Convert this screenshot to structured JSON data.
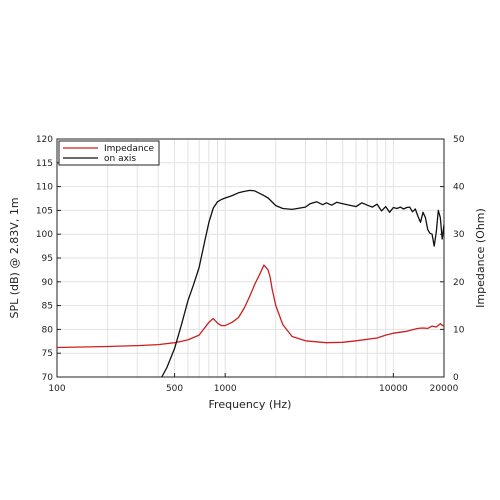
{
  "chart_data": {
    "type": "line",
    "xlabel": "Frequency (Hz)",
    "ylabel": "SPL (dB) @ 2.83V, 1m",
    "y2label": "Impedance (Ohm)",
    "x_scale": "log",
    "xlim": [
      100,
      20000
    ],
    "ylim": [
      70,
      120
    ],
    "y2lim": [
      0,
      50
    ],
    "x_ticks": [
      "100",
      "500",
      "1000",
      "10000",
      "20000"
    ],
    "x_tick_values": [
      100,
      500,
      1000,
      10000,
      20000
    ],
    "y_ticks": [
      "70",
      "75",
      "80",
      "85",
      "90",
      "95",
      "100",
      "105",
      "110",
      "115",
      "120"
    ],
    "y2_ticks": [
      "0",
      "10",
      "20",
      "30",
      "40",
      "50"
    ],
    "grid": true,
    "legend_position": "top-left",
    "series": [
      {
        "name": "Impedance",
        "color": "#cc1f1f",
        "axis": "right",
        "x": [
          100,
          200,
          300,
          400,
          500,
          600,
          700,
          800,
          850,
          900,
          950,
          1000,
          1100,
          1200,
          1300,
          1400,
          1500,
          1600,
          1700,
          1800,
          1850,
          1900,
          2000,
          2200,
          2500,
          3000,
          4000,
          5000,
          6000,
          8000,
          9000,
          10000,
          12000,
          14000,
          15000,
          16000,
          17000,
          18000,
          19000,
          20000
        ],
        "values": [
          6.2,
          6.4,
          6.6,
          6.8,
          7.2,
          7.8,
          8.8,
          11.5,
          12.3,
          11.3,
          10.8,
          10.8,
          11.5,
          12.5,
          14.5,
          17,
          19.5,
          21.5,
          23.5,
          22.5,
          21,
          18.5,
          15,
          11,
          8.5,
          7.6,
          7.2,
          7.3,
          7.6,
          8.2,
          8.8,
          9.2,
          9.6,
          10.2,
          10.3,
          10.2,
          10.7,
          10.5,
          11.2,
          10.6
        ]
      },
      {
        "name": "on axis",
        "color": "#111111",
        "axis": "left",
        "x": [
          420,
          450,
          500,
          550,
          600,
          650,
          700,
          750,
          800,
          850,
          900,
          950,
          1000,
          1100,
          1200,
          1300,
          1400,
          1500,
          1600,
          1700,
          1800,
          2000,
          2200,
          2500,
          3000,
          3200,
          3500,
          3800,
          4000,
          4300,
          4600,
          5000,
          5500,
          6000,
          6500,
          7000,
          7500,
          8000,
          8500,
          9000,
          9500,
          10000,
          10500,
          11000,
          11500,
          12000,
          12500,
          13000,
          13500,
          14000,
          14500,
          15000,
          15500,
          16000,
          16500,
          17000,
          17500,
          18000,
          18500,
          19000,
          19500,
          20000
        ],
        "values": [
          70,
          72,
          76,
          81,
          86,
          89.5,
          93,
          98,
          102.5,
          105.5,
          106.8,
          107.3,
          107.6,
          108.1,
          108.7,
          109,
          109.2,
          109.1,
          108.6,
          108.1,
          107.6,
          106,
          105.4,
          105.2,
          105.7,
          106.4,
          106.8,
          106.2,
          106.6,
          106.1,
          106.7,
          106.4,
          106.1,
          105.8,
          106.6,
          106.1,
          105.7,
          106.3,
          104.9,
          105.8,
          104.6,
          105.6,
          105.4,
          105.7,
          105.3,
          105.6,
          105.7,
          104.7,
          105.3,
          103.8,
          102.5,
          104.6,
          103.5,
          101,
          100.2,
          100,
          97.5,
          100.5,
          105,
          103.5,
          99,
          102
        ]
      }
    ]
  }
}
